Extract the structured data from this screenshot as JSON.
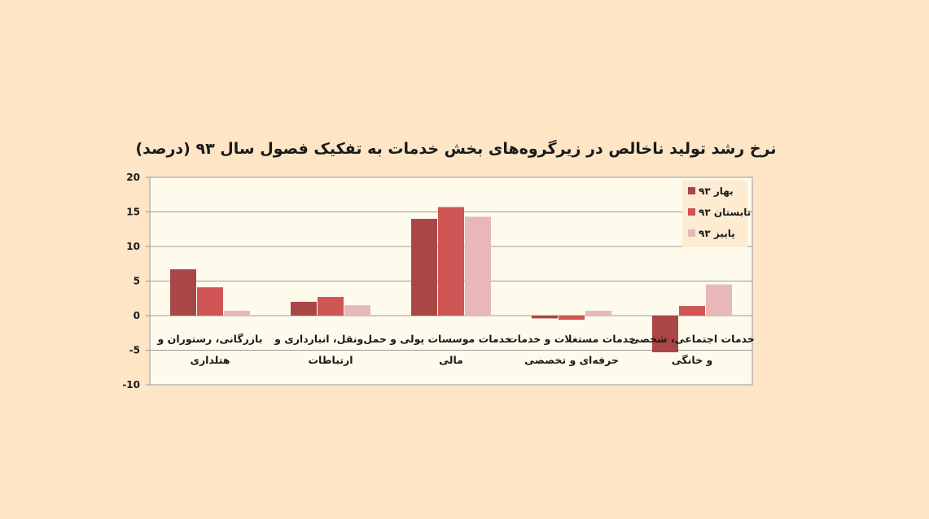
{
  "chart_data": {
    "type": "bar",
    "title": "نرخ رشد تولید ناخالص در زیرگروه‌های بخش خدمات به تفکیک فصول سال ۹۳ (درصد)",
    "xlabel": "",
    "ylabel": "",
    "ylim": [
      -10,
      20
    ],
    "yticks": [
      20,
      15,
      10,
      5,
      0,
      -5,
      -10
    ],
    "grid": true,
    "legend_position": "top-right",
    "categories": [
      [
        "بازرگانی، رستوران و",
        "هتلداری"
      ],
      [
        "حمل‌ونقل، انبارداری و",
        "ارتباطات"
      ],
      [
        "خدمات موسسات پولی و",
        "مالی"
      ],
      [
        "خدمات مستغلات و خدمات",
        "حرفه‌ای و تخصصی"
      ],
      [
        "خدمات اجتماعی، شخصی",
        "و خانگی"
      ]
    ],
    "series": [
      {
        "name": "بهار ۹۳",
        "color": "#a94646",
        "values": [
          6.7,
          2.0,
          14.0,
          -0.4,
          -5.3
        ]
      },
      {
        "name": "تابستان ۹۳",
        "color": "#d05555",
        "values": [
          4.1,
          2.7,
          15.7,
          -0.6,
          1.4
        ]
      },
      {
        "name": "پاییز ۹۳",
        "color": "#e8b7b7",
        "values": [
          0.7,
          1.5,
          14.3,
          0.7,
          4.5
        ]
      }
    ]
  }
}
